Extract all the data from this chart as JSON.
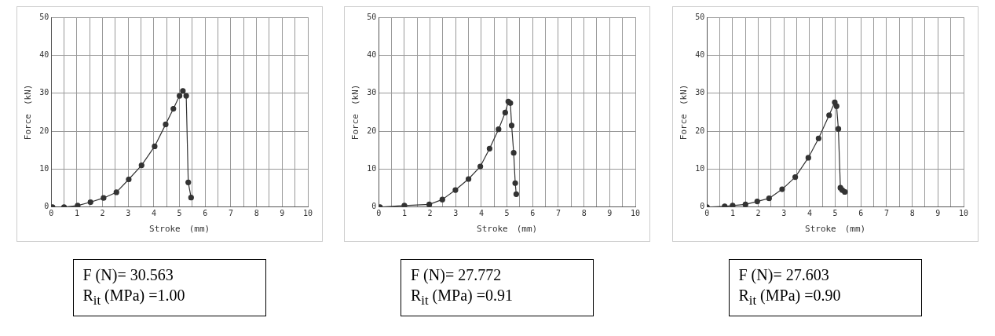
{
  "chart_data": [
    {
      "type": "line",
      "xlabel": "Stroke　(mm)",
      "ylabel": "Force　(kN)",
      "marker": "circle",
      "grid": true,
      "xlim": [
        0,
        10
      ],
      "ylim": [
        0,
        50
      ],
      "xticks": [
        0,
        {
          "value": 0.5,
          "label": null
        },
        1,
        {
          "value": 1.5,
          "label": null
        },
        2,
        {
          "value": 2.5,
          "label": null
        },
        3,
        {
          "value": 3.5,
          "label": null
        },
        4,
        {
          "value": 4.5,
          "label": null
        },
        5,
        {
          "value": 5.5,
          "label": null
        },
        6,
        {
          "value": 6.5,
          "label": null
        },
        7,
        {
          "value": 7.5,
          "label": null
        },
        8,
        {
          "value": 8.5,
          "label": null
        },
        9,
        {
          "value": 9.5,
          "label": null
        },
        10
      ],
      "yticks": [
        0,
        10,
        20,
        30,
        40,
        50
      ],
      "series": [
        {
          "color": "#333333",
          "x": [
            0.05,
            0.5,
            1.03,
            1.53,
            2.04,
            2.54,
            3.02,
            3.52,
            4.03,
            4.46,
            4.76,
            5.0,
            5.13,
            5.26,
            5.34,
            5.45
          ],
          "values": [
            0,
            0,
            0.4,
            1.3,
            2.4,
            3.9,
            7.3,
            11,
            16,
            21.8,
            25.9,
            29.3,
            30.6,
            29.3,
            6.5,
            2.5
          ]
        }
      ],
      "annotations": [
        "F (N)= 30.563",
        "R$_{it}$ (MPa) =1.00"
      ]
    },
    {
      "type": "line",
      "xlabel": "Stroke　(mm)",
      "ylabel": "Force　(kN)",
      "marker": "circle",
      "grid": true,
      "xlim": [
        0,
        10
      ],
      "ylim": [
        0,
        50
      ],
      "xticks": [
        0,
        {
          "value": 0.5,
          "label": null
        },
        1,
        {
          "value": 1.5,
          "label": null
        },
        2,
        {
          "value": 2.5,
          "label": null
        },
        3,
        {
          "value": 3.5,
          "label": null
        },
        4,
        {
          "value": 4.5,
          "label": null
        },
        5,
        {
          "value": 5.5,
          "label": null
        },
        6,
        {
          "value": 6.5,
          "label": null
        },
        7,
        {
          "value": 7.5,
          "label": null
        },
        8,
        {
          "value": 8.5,
          "label": null
        },
        9,
        {
          "value": 9.5,
          "label": null
        },
        10
      ],
      "yticks": [
        0,
        10,
        20,
        30,
        40,
        50
      ],
      "series": [
        {
          "color": "#333333",
          "x": [
            0.05,
            1.0,
            1.97,
            2.48,
            2.99,
            3.5,
            3.96,
            4.32,
            4.67,
            4.93,
            5.05,
            5.13,
            5.18,
            5.26,
            5.32,
            5.36
          ],
          "values": [
            0,
            0.4,
            0.7,
            2.0,
            4.5,
            7.4,
            10.7,
            15.4,
            20.5,
            24.9,
            27.8,
            27.4,
            21.5,
            14.3,
            6.3,
            3.4
          ]
        }
      ],
      "annotations": [
        "F (N)= 27.772",
        "R$_{it}$ (MPa) =0.91"
      ]
    },
    {
      "type": "line",
      "xlabel": "Stroke　(mm)",
      "ylabel": "Force　(kN)",
      "marker": "circle",
      "grid": true,
      "xlim": [
        0,
        10
      ],
      "ylim": [
        0,
        50
      ],
      "xticks": [
        0,
        {
          "value": 0.5,
          "label": null
        },
        1,
        {
          "value": 1.5,
          "label": null
        },
        2,
        {
          "value": 2.5,
          "label": null
        },
        3,
        {
          "value": 3.5,
          "label": null
        },
        4,
        {
          "value": 4.5,
          "label": null
        },
        5,
        {
          "value": 5.5,
          "label": null
        },
        6,
        {
          "value": 6.5,
          "label": null
        },
        7,
        {
          "value": 7.5,
          "label": null
        },
        8,
        {
          "value": 8.5,
          "label": null
        },
        9,
        {
          "value": 9.5,
          "label": null
        },
        10
      ],
      "yticks": [
        0,
        10,
        20,
        30,
        40,
        50
      ],
      "series": [
        {
          "color": "#333333",
          "x": [
            0,
            0.69,
            1.0,
            1.5,
            1.96,
            2.42,
            2.93,
            3.44,
            3.95,
            4.35,
            4.76,
            4.98,
            5.05,
            5.12,
            5.2,
            5.27,
            5.37
          ],
          "values": [
            0,
            0.2,
            0.4,
            0.7,
            1.5,
            2.3,
            4.7,
            7.9,
            13,
            18.1,
            24.2,
            27.6,
            26.6,
            20.6,
            5.1,
            4.5,
            4.0
          ]
        }
      ],
      "annotations": [
        "F (N)= 27.603",
        "R$_{it}$ (MPa) =0.90"
      ]
    }
  ]
}
